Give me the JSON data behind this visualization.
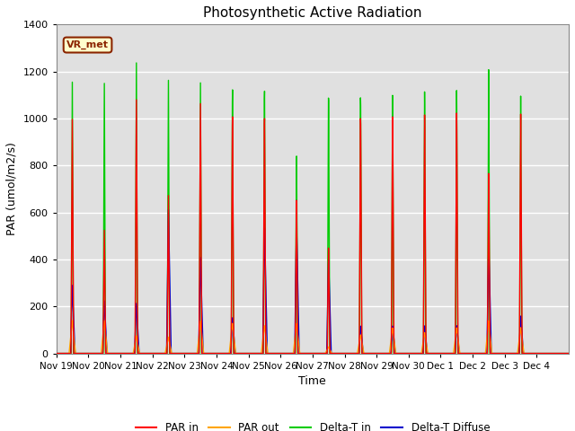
{
  "title": "Photosynthetic Active Radiation",
  "ylabel": "PAR (umol/m2/s)",
  "xlabel": "Time",
  "ylim": [
    0,
    1400
  ],
  "background_color": "#e0e0e0",
  "annotation_text": "VR_met",
  "annotation_bg": "#ffffcc",
  "annotation_border": "#8b2500",
  "x_tick_labels": [
    "Nov 19",
    "Nov 20",
    "Nov 21",
    "Nov 22",
    "Nov 23",
    "Nov 24",
    "Nov 25",
    "Nov 26",
    "Nov 27",
    "Nov 28",
    "Nov 29",
    "Nov 30",
    "Dec 1",
    "Dec 2",
    "Dec 3",
    "Dec 4"
  ],
  "num_days": 16,
  "par_in_peaks": [
    1000,
    530,
    1100,
    690,
    1100,
    1050,
    1050,
    690,
    475,
    1050,
    1050,
    1050,
    1050,
    780,
    1030,
    0
  ],
  "par_out_peaks": [
    140,
    140,
    75,
    70,
    140,
    130,
    120,
    130,
    28,
    80,
    110,
    90,
    110,
    140,
    110,
    0
  ],
  "delta_t_peaks": [
    1160,
    1165,
    1265,
    1200,
    1200,
    1180,
    1185,
    900,
    1165,
    1155,
    1155,
    1160,
    1155,
    1235,
    1110,
    0
  ],
  "delta_t_diff_peaks": [
    290,
    225,
    215,
    620,
    415,
    155,
    545,
    550,
    410,
    120,
    120,
    120,
    120,
    465,
    160,
    0
  ],
  "par_in_color": "#ff0000",
  "par_out_color": "#ffa500",
  "delta_t_color": "#00cc00",
  "delta_t_diff_color": "#0000cc"
}
